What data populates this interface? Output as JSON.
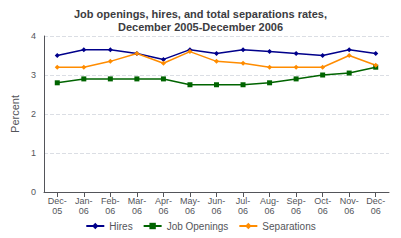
{
  "chart_data": {
    "type": "line",
    "title": "Job openings, hires, and total separations rates,\nDecember 2005-December 2006",
    "ylabel": "Percent",
    "categories": [
      "Dec-\n05",
      "Jan-\n06",
      "Feb-\n06",
      "Mar-\n06",
      "Apr-\n06",
      "May-\n06",
      "Jun-\n06",
      "Jul-\n06",
      "Aug-\n06",
      "Sep-\n06",
      "Oct-\n06",
      "Nov-\n06",
      "Dec-\n06"
    ],
    "series": [
      {
        "name": "Hires",
        "color": "#00008B",
        "marker": "diamond",
        "values": [
          3.5,
          3.65,
          3.65,
          3.55,
          3.4,
          3.65,
          3.55,
          3.65,
          3.6,
          3.55,
          3.5,
          3.65,
          3.55
        ]
      },
      {
        "name": "Job Openings",
        "color": "#006400",
        "marker": "square",
        "values": [
          2.8,
          2.9,
          2.9,
          2.9,
          2.9,
          2.75,
          2.75,
          2.75,
          2.8,
          2.9,
          3.0,
          3.05,
          3.2
        ]
      },
      {
        "name": "Separations",
        "color": "#FF8C00",
        "marker": "diamond",
        "values": [
          3.2,
          3.2,
          3.35,
          3.55,
          3.3,
          3.6,
          3.35,
          3.3,
          3.2,
          3.2,
          3.2,
          3.5,
          3.25
        ]
      }
    ],
    "ylim": [
      0,
      4
    ],
    "yticks": [
      0,
      1,
      2,
      3,
      4
    ],
    "grid": true,
    "legend": "bottom"
  }
}
